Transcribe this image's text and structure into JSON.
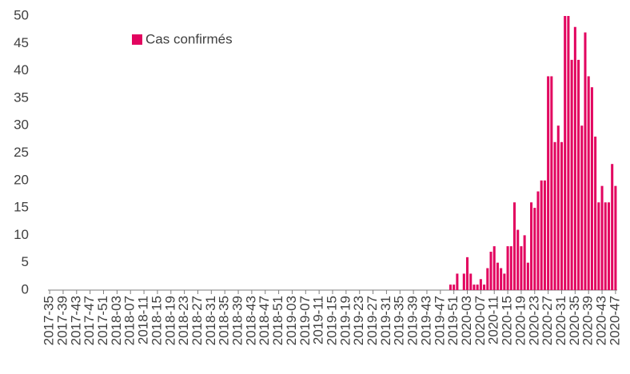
{
  "chart_data": {
    "type": "bar",
    "categories": [
      "2017-35",
      null,
      null,
      null,
      "2017-39",
      null,
      null,
      null,
      "2017-43",
      null,
      null,
      null,
      "2017-47",
      null,
      null,
      null,
      "2017-51",
      null,
      null,
      null,
      "2018-03",
      null,
      null,
      null,
      "2018-07",
      null,
      null,
      null,
      "2018-11",
      null,
      null,
      null,
      "2018-15",
      null,
      null,
      null,
      "2018-19",
      null,
      null,
      null,
      "2018-23",
      null,
      null,
      null,
      "2018-27",
      null,
      null,
      null,
      "2018-31",
      null,
      null,
      null,
      "2018-35",
      null,
      null,
      null,
      "2018-39",
      null,
      null,
      null,
      "2018-43",
      null,
      null,
      null,
      "2018-47",
      null,
      null,
      null,
      "2018-51",
      null,
      null,
      null,
      "2019-03",
      null,
      null,
      null,
      "2019-07",
      null,
      null,
      null,
      "2019-11",
      null,
      null,
      null,
      "2019-15",
      null,
      null,
      null,
      "2019-19",
      null,
      null,
      null,
      "2019-23",
      null,
      null,
      null,
      "2019-27",
      null,
      null,
      null,
      "2019-31",
      null,
      null,
      null,
      "2019-35",
      null,
      null,
      null,
      "2019-39",
      null,
      null,
      null,
      "2019-43",
      null,
      null,
      null,
      "2019-47",
      null,
      null,
      null,
      "2019-51",
      null,
      null,
      null,
      "2020-03",
      null,
      null,
      null,
      "2020-07",
      null,
      null,
      null,
      "2020-11",
      null,
      null,
      null,
      "2020-15",
      null,
      null,
      null,
      "2020-19",
      null,
      null,
      null,
      "2020-23",
      null,
      null,
      null,
      "2020-27",
      null,
      null,
      null,
      "2020-31",
      null,
      null,
      null,
      "2020-35",
      null,
      null,
      null,
      "2020-39",
      null,
      null,
      null,
      "2020-43",
      null,
      null,
      null,
      "2020-47"
    ],
    "series": [
      {
        "name": "Cas confirmés",
        "color": "#e2045f",
        "values": [
          0,
          0,
          0,
          0,
          0,
          0,
          0,
          0,
          0,
          0,
          0,
          0,
          0,
          0,
          0,
          0,
          0,
          0,
          0,
          0,
          0,
          0,
          0,
          0,
          0,
          0,
          0,
          0,
          0,
          0,
          0,
          0,
          0,
          0,
          0,
          0,
          0,
          0,
          0,
          0,
          0,
          0,
          0,
          0,
          0,
          0,
          0,
          0,
          0,
          0,
          0,
          0,
          0,
          0,
          0,
          0,
          0,
          0,
          0,
          0,
          0,
          0,
          0,
          0,
          0,
          0,
          0,
          0,
          0,
          0,
          0,
          0,
          0,
          0,
          0,
          0,
          0,
          0,
          0,
          0,
          0,
          0,
          0,
          0,
          0,
          0,
          0,
          0,
          0,
          0,
          0,
          0,
          0,
          0,
          0,
          0,
          0,
          0,
          0,
          0,
          0,
          0,
          0,
          0,
          0,
          0,
          0,
          0,
          0,
          0,
          0,
          0,
          0,
          0,
          0,
          0,
          0,
          0,
          0,
          1,
          1,
          3,
          0,
          3,
          6,
          3,
          1,
          1,
          2,
          1,
          4,
          7,
          8,
          5,
          4,
          3,
          8,
          8,
          16,
          11,
          8,
          10,
          5,
          16,
          15,
          18,
          20,
          20,
          39,
          39,
          27,
          30,
          27,
          50,
          50,
          42,
          48,
          42,
          30,
          47,
          39,
          37,
          28,
          16,
          19,
          16,
          16,
          23,
          19
        ]
      }
    ],
    "ylim": [
      0,
      50
    ],
    "yticks": [
      0,
      5,
      10,
      15,
      20,
      25,
      30,
      35,
      40,
      45,
      50
    ],
    "legend": "upper-left"
  }
}
